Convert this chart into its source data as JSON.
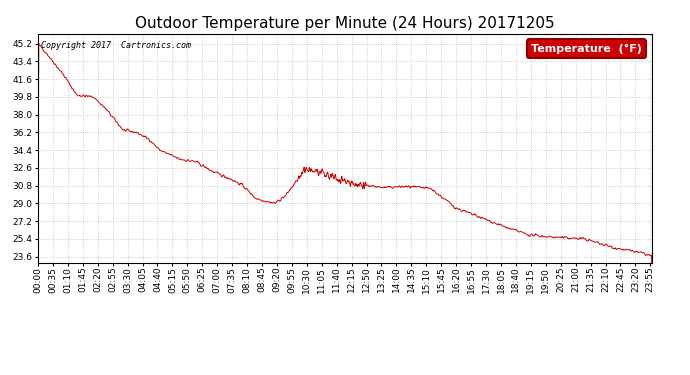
{
  "title": "Outdoor Temperature per Minute (24 Hours) 20171205",
  "copyright_text": "Copyright 2017  Cartronics.com",
  "legend_label": "Temperature  (°F)",
  "line_color": "#cc0000",
  "background_color": "#ffffff",
  "grid_color": "#bbbbbb",
  "ylim": [
    23.0,
    46.2
  ],
  "yticks": [
    23.6,
    25.4,
    27.2,
    29.0,
    30.8,
    32.6,
    34.4,
    36.2,
    38.0,
    39.8,
    41.6,
    43.4,
    45.2
  ],
  "total_minutes": 1440,
  "xtick_interval": 35,
  "title_fontsize": 11,
  "axis_fontsize": 6.5,
  "legend_fontsize": 8,
  "copyright_fontsize": 6.0
}
